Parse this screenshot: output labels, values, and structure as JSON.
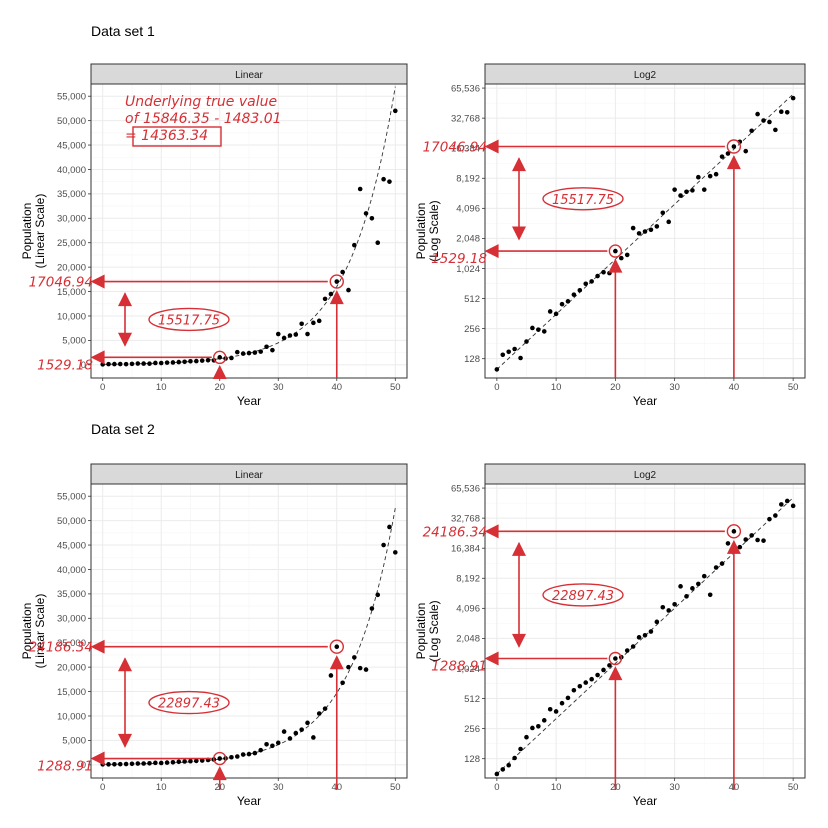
{
  "colors": {
    "annotation": "#d62f35",
    "point": "#000000",
    "grid_major": "#ebebeb",
    "grid_minor": "#f5f5f5",
    "strip_fill": "#d9d9d9",
    "panel_border": "#333333"
  },
  "chart_data": [
    {
      "type": "scatter",
      "dataset_title": "Data set 1",
      "facet": "Linear",
      "scale": "linear",
      "xlabel": "Year",
      "ylabel": [
        "Population",
        "(Linear Scale)"
      ],
      "xlim": [
        -2,
        52
      ],
      "ylim": [
        -2700,
        57500
      ],
      "x_ticks": [
        0,
        10,
        20,
        30,
        40,
        50
      ],
      "y_ticks": [
        0,
        5000,
        10000,
        15000,
        20000,
        25000,
        30000,
        35000,
        40000,
        45000,
        50000,
        55000
      ],
      "y_tick_labels": [
        "0",
        "5,000",
        "10,000",
        "15,000",
        "20,000",
        "25,000",
        "30,000",
        "35,000",
        "40,000",
        "45,000",
        "50,000",
        "55,000"
      ],
      "trend": {
        "style": "dashed",
        "a": 100,
        "b": 0.1269
      },
      "points": [
        [
          0,
          100
        ],
        [
          1,
          140
        ],
        [
          2,
          150
        ],
        [
          3,
          160
        ],
        [
          4,
          130
        ],
        [
          5,
          190
        ],
        [
          6,
          260
        ],
        [
          7,
          250
        ],
        [
          8,
          240
        ],
        [
          9,
          380
        ],
        [
          10,
          360
        ],
        [
          11,
          450
        ],
        [
          12,
          480
        ],
        [
          13,
          560
        ],
        [
          14,
          620
        ],
        [
          15,
          720
        ],
        [
          16,
          760
        ],
        [
          17,
          860
        ],
        [
          18,
          940
        ],
        [
          19,
          920
        ],
        [
          20,
          1529
        ],
        [
          21,
          1300
        ],
        [
          22,
          1400
        ],
        [
          23,
          2600
        ],
        [
          24,
          2300
        ],
        [
          25,
          2400
        ],
        [
          26,
          2500
        ],
        [
          27,
          2700
        ],
        [
          28,
          3700
        ],
        [
          29,
          3000
        ],
        [
          30,
          6300
        ],
        [
          31,
          5500
        ],
        [
          32,
          6000
        ],
        [
          33,
          6200
        ],
        [
          34,
          8400
        ],
        [
          35,
          6300
        ],
        [
          36,
          8600
        ],
        [
          37,
          9000
        ],
        [
          38,
          13500
        ],
        [
          39,
          14500
        ],
        [
          40,
          17047
        ],
        [
          41,
          19000
        ],
        [
          42,
          15300
        ],
        [
          43,
          24500
        ],
        [
          44,
          36000
        ],
        [
          45,
          31000
        ],
        [
          46,
          30000
        ],
        [
          47,
          25000
        ],
        [
          48,
          38000
        ],
        [
          49,
          37500
        ],
        [
          50,
          52000
        ]
      ],
      "annotation": {
        "high": {
          "x": 40,
          "y": 17046.94,
          "label": "17046.94"
        },
        "low": {
          "x": 20,
          "y": 1529.18,
          "label": "1529.18"
        },
        "difference": "15517.75",
        "note": [
          "Underlying true value",
          "of 15846.35 - 1483.01",
          "= 14363.34"
        ]
      }
    },
    {
      "type": "scatter",
      "dataset_title": "",
      "facet": "Log2",
      "scale": "log2",
      "xlabel": "Year",
      "ylabel": [
        "Population",
        "(Log Scale)"
      ],
      "xlim": [
        -2,
        52
      ],
      "ylim": [
        82,
        72000
      ],
      "x_ticks": [
        0,
        10,
        20,
        30,
        40,
        50
      ],
      "y_ticks": [
        128,
        256,
        512,
        1024,
        2048,
        4096,
        8192,
        16384,
        32768,
        65536
      ],
      "y_tick_labels": [
        "128",
        "256",
        "512",
        "1,024",
        "2,048",
        "4,096",
        "8,192",
        "16,384",
        "32,768",
        "65,536"
      ],
      "trend": {
        "style": "dashed",
        "a": 100,
        "b": 0.1269
      },
      "points": [
        [
          0,
          100
        ],
        [
          1,
          140
        ],
        [
          2,
          150
        ],
        [
          3,
          160
        ],
        [
          4,
          130
        ],
        [
          5,
          190
        ],
        [
          6,
          260
        ],
        [
          7,
          250
        ],
        [
          8,
          240
        ],
        [
          9,
          380
        ],
        [
          10,
          360
        ],
        [
          11,
          450
        ],
        [
          12,
          480
        ],
        [
          13,
          560
        ],
        [
          14,
          620
        ],
        [
          15,
          720
        ],
        [
          16,
          760
        ],
        [
          17,
          860
        ],
        [
          18,
          940
        ],
        [
          19,
          920
        ],
        [
          20,
          1529
        ],
        [
          21,
          1300
        ],
        [
          22,
          1400
        ],
        [
          23,
          2600
        ],
        [
          24,
          2300
        ],
        [
          25,
          2400
        ],
        [
          26,
          2500
        ],
        [
          27,
          2700
        ],
        [
          28,
          3700
        ],
        [
          29,
          3000
        ],
        [
          30,
          6300
        ],
        [
          31,
          5500
        ],
        [
          32,
          6000
        ],
        [
          33,
          6200
        ],
        [
          34,
          8400
        ],
        [
          35,
          6300
        ],
        [
          36,
          8600
        ],
        [
          37,
          9000
        ],
        [
          38,
          13500
        ],
        [
          39,
          14500
        ],
        [
          40,
          17047
        ],
        [
          41,
          19000
        ],
        [
          42,
          15300
        ],
        [
          43,
          24500
        ],
        [
          44,
          36000
        ],
        [
          45,
          31000
        ],
        [
          46,
          30000
        ],
        [
          47,
          25000
        ],
        [
          48,
          38000
        ],
        [
          49,
          37500
        ],
        [
          50,
          52000
        ]
      ],
      "annotation": {
        "high": {
          "x": 40,
          "y": 17046.94,
          "label": "17046.94"
        },
        "low": {
          "x": 20,
          "y": 1529.18,
          "label": "1529.18"
        },
        "difference": "15517.75"
      }
    },
    {
      "type": "scatter",
      "dataset_title": "Data set 2",
      "facet": "Linear",
      "scale": "linear",
      "xlabel": "Year",
      "ylabel": [
        "Population",
        "(Linear Scale)"
      ],
      "xlim": [
        -2,
        52
      ],
      "ylim": [
        -2700,
        57500
      ],
      "x_ticks": [
        0,
        10,
        20,
        30,
        40,
        50
      ],
      "y_ticks": [
        0,
        5000,
        10000,
        15000,
        20000,
        25000,
        30000,
        35000,
        40000,
        45000,
        50000,
        55000
      ],
      "y_tick_labels": [
        "0",
        "5,000",
        "10,000",
        "15,000",
        "20,000",
        "25,000",
        "30,000",
        "35,000",
        "40,000",
        "45,000",
        "50,000",
        "55,000"
      ],
      "trend": {
        "style": "dashed",
        "a": 90,
        "b": 0.1274
      },
      "points": [
        [
          0,
          90
        ],
        [
          1,
          100
        ],
        [
          2,
          110
        ],
        [
          3,
          130
        ],
        [
          4,
          160
        ],
        [
          5,
          210
        ],
        [
          6,
          260
        ],
        [
          7,
          270
        ],
        [
          8,
          310
        ],
        [
          9,
          400
        ],
        [
          10,
          380
        ],
        [
          11,
          460
        ],
        [
          12,
          520
        ],
        [
          13,
          620
        ],
        [
          14,
          680
        ],
        [
          15,
          740
        ],
        [
          16,
          800
        ],
        [
          17,
          880
        ],
        [
          18,
          990
        ],
        [
          19,
          1100
        ],
        [
          20,
          1289
        ],
        [
          21,
          1330
        ],
        [
          22,
          1550
        ],
        [
          23,
          1700
        ],
        [
          24,
          2100
        ],
        [
          25,
          2200
        ],
        [
          26,
          2400
        ],
        [
          27,
          3000
        ],
        [
          28,
          4200
        ],
        [
          29,
          3900
        ],
        [
          30,
          4500
        ],
        [
          31,
          6800
        ],
        [
          32,
          5400
        ],
        [
          33,
          6500
        ],
        [
          34,
          7200
        ],
        [
          35,
          8600
        ],
        [
          36,
          5600
        ],
        [
          37,
          10500
        ],
        [
          38,
          11500
        ],
        [
          39,
          18300
        ],
        [
          40,
          24186
        ],
        [
          41,
          16800
        ],
        [
          42,
          20000
        ],
        [
          43,
          22000
        ],
        [
          44,
          19800
        ],
        [
          45,
          19500
        ],
        [
          46,
          32000
        ],
        [
          47,
          34800
        ],
        [
          48,
          45000
        ],
        [
          49,
          48700
        ],
        [
          50,
          43500
        ]
      ],
      "annotation": {
        "high": {
          "x": 40,
          "y": 24186.34,
          "label": "24186.34"
        },
        "low": {
          "x": 20,
          "y": 1288.91,
          "label": "1288.91"
        },
        "difference": "22897.43"
      }
    },
    {
      "type": "scatter",
      "dataset_title": "",
      "facet": "Log2",
      "scale": "log2",
      "xlabel": "Year",
      "ylabel": [
        "Population",
        "(Log Scale)"
      ],
      "xlim": [
        -2,
        52
      ],
      "ylim": [
        82,
        72000
      ],
      "x_ticks": [
        0,
        10,
        20,
        30,
        40,
        50
      ],
      "y_ticks": [
        128,
        256,
        512,
        1024,
        2048,
        4096,
        8192,
        16384,
        32768,
        65536
      ],
      "y_tick_labels": [
        "128",
        "256",
        "512",
        "1,024",
        "2,048",
        "4,096",
        "8,192",
        "16,384",
        "32,768",
        "65,536"
      ],
      "trend": {
        "style": "dashed",
        "a": 90,
        "b": 0.1274
      },
      "points": [
        [
          0,
          90
        ],
        [
          1,
          100
        ],
        [
          2,
          110
        ],
        [
          3,
          130
        ],
        [
          4,
          160
        ],
        [
          5,
          210
        ],
        [
          6,
          260
        ],
        [
          7,
          270
        ],
        [
          8,
          310
        ],
        [
          9,
          400
        ],
        [
          10,
          380
        ],
        [
          11,
          460
        ],
        [
          12,
          520
        ],
        [
          13,
          620
        ],
        [
          14,
          680
        ],
        [
          15,
          740
        ],
        [
          16,
          800
        ],
        [
          17,
          880
        ],
        [
          18,
          990
        ],
        [
          19,
          1100
        ],
        [
          20,
          1289
        ],
        [
          21,
          1330
        ],
        [
          22,
          1550
        ],
        [
          23,
          1700
        ],
        [
          24,
          2100
        ],
        [
          25,
          2200
        ],
        [
          26,
          2400
        ],
        [
          27,
          3000
        ],
        [
          28,
          4200
        ],
        [
          29,
          3900
        ],
        [
          30,
          4500
        ],
        [
          31,
          6800
        ],
        [
          32,
          5400
        ],
        [
          33,
          6500
        ],
        [
          34,
          7200
        ],
        [
          35,
          8600
        ],
        [
          36,
          5600
        ],
        [
          37,
          10500
        ],
        [
          38,
          11500
        ],
        [
          39,
          18300
        ],
        [
          40,
          24186
        ],
        [
          41,
          16800
        ],
        [
          42,
          20000
        ],
        [
          43,
          22000
        ],
        [
          44,
          19800
        ],
        [
          45,
          19500
        ],
        [
          46,
          32000
        ],
        [
          47,
          34800
        ],
        [
          48,
          45000
        ],
        [
          49,
          48700
        ],
        [
          50,
          43500
        ]
      ],
      "annotation": {
        "high": {
          "x": 40,
          "y": 24186.34,
          "label": "24186.34"
        },
        "low": {
          "x": 20,
          "y": 1288.91,
          "label": "1288.91"
        },
        "difference": "22897.43"
      }
    }
  ]
}
